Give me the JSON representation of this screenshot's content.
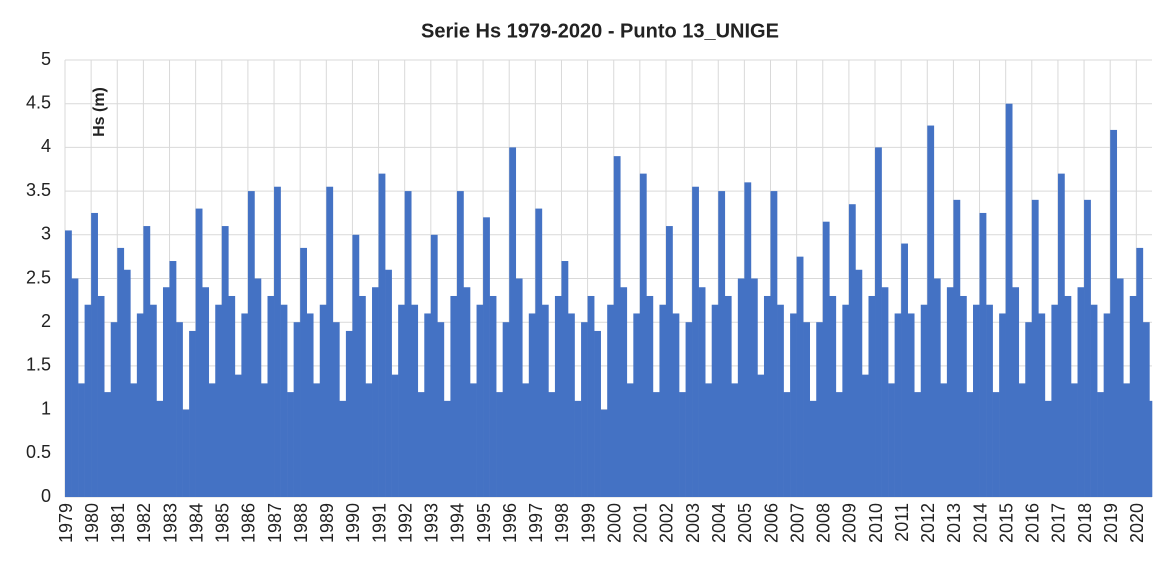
{
  "chart_data": {
    "type": "spikes",
    "title": "Serie Hs 1979-2020 - Punto 13_UNIGE",
    "y_label": "Hs (m)",
    "color": "#4472c4",
    "grid": true,
    "xlim": [
      1979,
      2020.6
    ],
    "xticks": [
      1979,
      1980,
      1981,
      1982,
      1983,
      1984,
      1985,
      1986,
      1987,
      1988,
      1989,
      1990,
      1991,
      1992,
      1993,
      1994,
      1995,
      1996,
      1997,
      1998,
      1999,
      2000,
      2001,
      2002,
      2003,
      2004,
      2005,
      2006,
      2007,
      2008,
      2009,
      2010,
      2011,
      2012,
      2013,
      2014,
      2015,
      2016,
      2017,
      2018,
      2019,
      2020
    ],
    "ylim": [
      0,
      5
    ],
    "yticks": [
      0,
      0.5,
      1,
      1.5,
      2,
      2.5,
      3,
      3.5,
      4,
      4.5,
      5
    ],
    "x": [
      1979,
      1979.25,
      1979.5,
      1979.75,
      1980,
      1980.25,
      1980.5,
      1980.75,
      1981,
      1981.25,
      1981.5,
      1981.75,
      1982,
      1982.25,
      1982.5,
      1982.75,
      1983,
      1983.25,
      1983.5,
      1983.75,
      1984,
      1984.25,
      1984.5,
      1984.75,
      1985,
      1985.25,
      1985.5,
      1985.75,
      1986,
      1986.25,
      1986.5,
      1986.75,
      1987,
      1987.25,
      1987.5,
      1987.75,
      1988,
      1988.25,
      1988.5,
      1988.75,
      1989,
      1989.25,
      1989.5,
      1989.75,
      1990,
      1990.25,
      1990.5,
      1990.75,
      1991,
      1991.25,
      1991.5,
      1991.75,
      1992,
      1992.25,
      1992.5,
      1992.75,
      1993,
      1993.25,
      1993.5,
      1993.75,
      1994,
      1994.25,
      1994.5,
      1994.75,
      1995,
      1995.25,
      1995.5,
      1995.75,
      1996,
      1996.25,
      1996.5,
      1996.75,
      1997,
      1997.25,
      1997.5,
      1997.75,
      1998,
      1998.25,
      1998.5,
      1998.75,
      1999,
      1999.25,
      1999.5,
      1999.75,
      2000,
      2000.25,
      2000.5,
      2000.75,
      2001,
      2001.25,
      2001.5,
      2001.75,
      2002,
      2002.25,
      2002.5,
      2002.75,
      2003,
      2003.25,
      2003.5,
      2003.75,
      2004,
      2004.25,
      2004.5,
      2004.75,
      2005,
      2005.25,
      2005.5,
      2005.75,
      2006,
      2006.25,
      2006.5,
      2006.75,
      2007,
      2007.25,
      2007.5,
      2007.75,
      2008,
      2008.25,
      2008.5,
      2008.75,
      2009,
      2009.25,
      2009.5,
      2009.75,
      2010,
      2010.25,
      2010.5,
      2010.75,
      2011,
      2011.25,
      2011.5,
      2011.75,
      2012,
      2012.25,
      2012.5,
      2012.75,
      2013,
      2013.25,
      2013.5,
      2013.75,
      2014,
      2014.25,
      2014.5,
      2014.75,
      2015,
      2015.25,
      2015.5,
      2015.75,
      2016,
      2016.25,
      2016.5,
      2016.75,
      2017,
      2017.25,
      2017.5,
      2017.75,
      2018,
      2018.25,
      2018.5,
      2018.75,
      2019,
      2019.25,
      2019.5,
      2019.75,
      2020,
      2020.25,
      2020.5
    ],
    "values": [
      3.05,
      2.5,
      1.3,
      2.2,
      3.25,
      2.3,
      1.2,
      2.0,
      2.85,
      2.6,
      1.3,
      2.1,
      3.1,
      2.2,
      1.1,
      2.4,
      2.7,
      2.0,
      1.0,
      1.9,
      3.3,
      2.4,
      1.3,
      2.2,
      3.1,
      2.3,
      1.4,
      2.1,
      3.5,
      2.5,
      1.3,
      2.3,
      3.55,
      2.2,
      1.2,
      2.0,
      2.85,
      2.1,
      1.3,
      2.2,
      3.55,
      2.0,
      1.1,
      1.9,
      3.0,
      2.3,
      1.3,
      2.4,
      3.7,
      2.6,
      1.4,
      2.2,
      3.5,
      2.2,
      1.2,
      2.1,
      3.0,
      2.0,
      1.1,
      2.3,
      3.5,
      2.4,
      1.3,
      2.2,
      3.2,
      2.3,
      1.2,
      2.0,
      4.0,
      2.5,
      1.3,
      2.1,
      3.3,
      2.2,
      1.2,
      2.3,
      2.7,
      2.1,
      1.1,
      2.0,
      2.3,
      1.9,
      1.0,
      2.2,
      3.9,
      2.4,
      1.3,
      2.1,
      3.7,
      2.3,
      1.2,
      2.2,
      3.1,
      2.1,
      1.2,
      2.0,
      3.55,
      2.4,
      1.3,
      2.2,
      3.5,
      2.3,
      1.3,
      2.5,
      3.6,
      2.5,
      1.4,
      2.3,
      3.5,
      2.2,
      1.2,
      2.1,
      2.75,
      2.0,
      1.1,
      2.0,
      3.15,
      2.3,
      1.2,
      2.2,
      3.35,
      2.6,
      1.4,
      2.3,
      4.0,
      2.4,
      1.3,
      2.1,
      2.9,
      2.1,
      1.2,
      2.2,
      4.25,
      2.5,
      1.3,
      2.4,
      3.4,
      2.3,
      1.2,
      2.2,
      3.25,
      2.2,
      1.2,
      2.1,
      4.5,
      2.4,
      1.3,
      2.0,
      3.4,
      2.1,
      1.1,
      2.2,
      3.7,
      2.3,
      1.3,
      2.4,
      3.4,
      2.2,
      1.2,
      2.1,
      4.2,
      2.5,
      1.3,
      2.3,
      2.85,
      2.0,
      1.1
    ]
  }
}
